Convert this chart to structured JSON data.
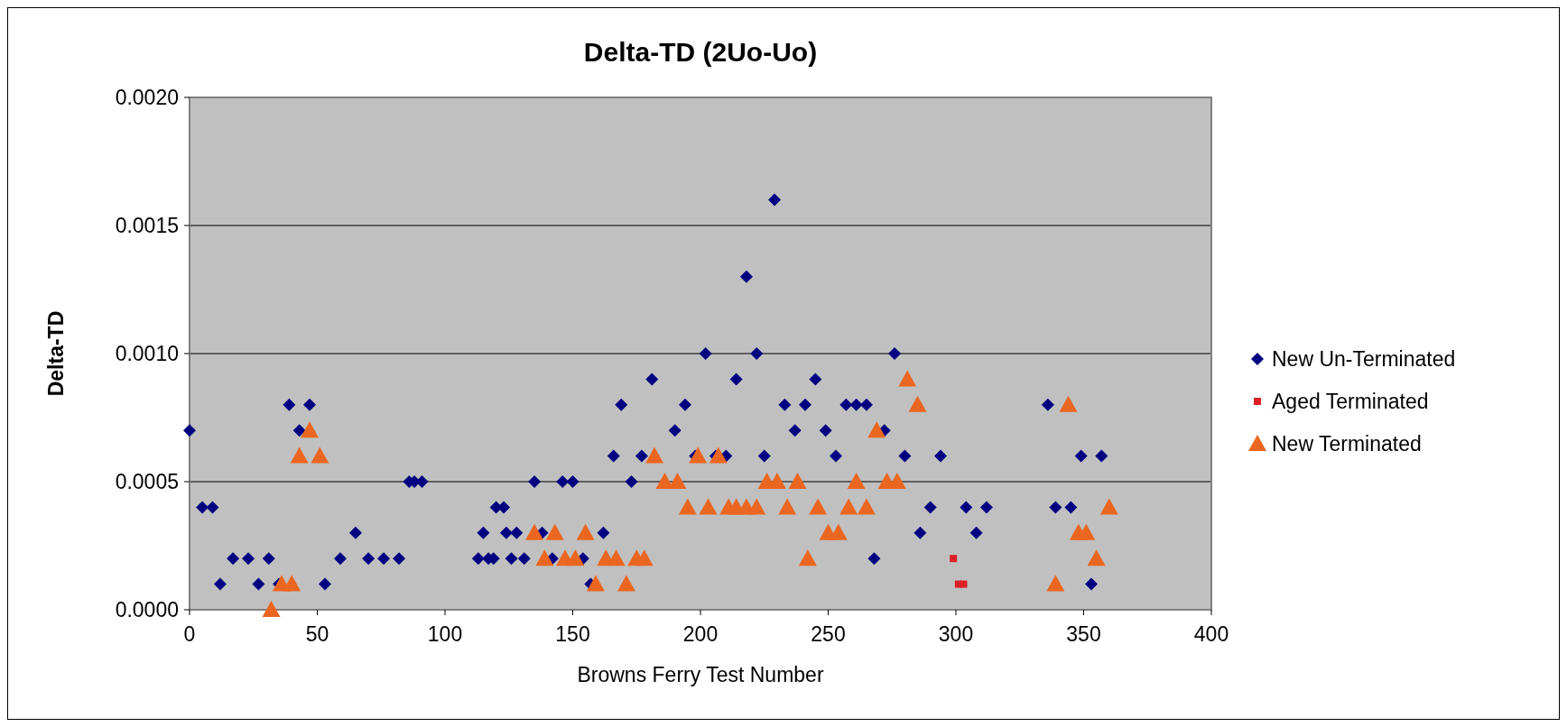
{
  "chart_data": {
    "type": "scatter",
    "title": "Delta-TD (2Uo-Uo)",
    "xlabel": "Browns Ferry Test Number",
    "ylabel": "Delta-TD",
    "xlim": [
      0,
      400
    ],
    "xticks": [
      0,
      50,
      100,
      150,
      200,
      250,
      300,
      350,
      400
    ],
    "ylim": [
      0,
      0.002
    ],
    "yticks": [
      {
        "value": 0,
        "label": "0.0000"
      },
      {
        "value": 0.0005,
        "label": "0.0005"
      },
      {
        "value": 0.001,
        "label": "0.0010"
      },
      {
        "value": 0.0015,
        "label": "0.0015"
      },
      {
        "value": 0.002,
        "label": "0.0020"
      }
    ],
    "grid": "y",
    "legend": "right",
    "series": [
      {
        "name": "New Un-Terminated",
        "color": "#000080",
        "marker": "diamond",
        "x": [
          0,
          5,
          9,
          12,
          17,
          23,
          27,
          31,
          35,
          39,
          43,
          47,
          53,
          59,
          65,
          70,
          76,
          82,
          86,
          88,
          91,
          113,
          115,
          117,
          119,
          120,
          123,
          124,
          126,
          128,
          131,
          135,
          138,
          142,
          146,
          150,
          154,
          157,
          162,
          166,
          169,
          173,
          177,
          181,
          190,
          194,
          198,
          202,
          206,
          210,
          214,
          218,
          222,
          225,
          229,
          233,
          237,
          241,
          245,
          249,
          253,
          257,
          261,
          265,
          268,
          272,
          276,
          280,
          286,
          290,
          294,
          304,
          308,
          312,
          336,
          339,
          345,
          349,
          353,
          357
        ],
        "values": [
          0.0007,
          0.0004,
          0.0004,
          0.0001,
          0.0002,
          0.0002,
          0.0001,
          0.0002,
          0.0001,
          0.0008,
          0.0007,
          0.0008,
          0.0001,
          0.0002,
          0.0003,
          0.0002,
          0.0002,
          0.0002,
          0.0005,
          0.0005,
          0.0005,
          0.0002,
          0.0003,
          0.0002,
          0.0002,
          0.0004,
          0.0004,
          0.0003,
          0.0002,
          0.0003,
          0.0002,
          0.0005,
          0.0003,
          0.0002,
          0.0005,
          0.0005,
          0.0002,
          0.0001,
          0.0003,
          0.0006,
          0.0008,
          0.0005,
          0.0006,
          0.0009,
          0.0007,
          0.0008,
          0.0006,
          0.001,
          0.0006,
          0.0006,
          0.0009,
          0.0013,
          0.001,
          0.0006,
          0.0016,
          0.0008,
          0.0007,
          0.0008,
          0.0009,
          0.0007,
          0.0006,
          0.0008,
          0.0008,
          0.0008,
          0.0002,
          0.0007,
          0.001,
          0.0006,
          0.0003,
          0.0004,
          0.0006,
          0.0004,
          0.0003,
          0.0004,
          0.0008,
          0.0004,
          0.0004,
          0.0006,
          0.0001,
          0.0006
        ]
      },
      {
        "name": "Aged Terminated",
        "color": "#dd2027",
        "marker": "square",
        "x": [
          299,
          301,
          303
        ],
        "values": [
          0.0002,
          0.0001,
          0.0001
        ]
      },
      {
        "name": "New Terminated",
        "color": "#eb6620",
        "marker": "triangle",
        "x": [
          32,
          36,
          40,
          43,
          47,
          51,
          135,
          139,
          143,
          147,
          151,
          155,
          159,
          163,
          167,
          171,
          175,
          178,
          182,
          186,
          191,
          195,
          199,
          203,
          207,
          211,
          214,
          218,
          222,
          226,
          230,
          234,
          238,
          242,
          246,
          250,
          254,
          258,
          261,
          265,
          269,
          273,
          277,
          281,
          285,
          339,
          344,
          348,
          351,
          355,
          360
        ],
        "values": [
          0,
          0.0001,
          0.0001,
          0.0006,
          0.0007,
          0.0006,
          0.0003,
          0.0002,
          0.0003,
          0.0002,
          0.0002,
          0.0003,
          0.0001,
          0.0002,
          0.0002,
          0.0001,
          0.0002,
          0.0002,
          0.0006,
          0.0005,
          0.0005,
          0.0004,
          0.0006,
          0.0004,
          0.0006,
          0.0004,
          0.0004,
          0.0004,
          0.0004,
          0.0005,
          0.0005,
          0.0004,
          0.0005,
          0.0002,
          0.0004,
          0.0003,
          0.0003,
          0.0004,
          0.0005,
          0.0004,
          0.0007,
          0.0005,
          0.0005,
          0.0009,
          0.0008,
          0.0001,
          0.0008,
          0.0003,
          0.0003,
          0.0002,
          0.0004
        ]
      }
    ]
  }
}
